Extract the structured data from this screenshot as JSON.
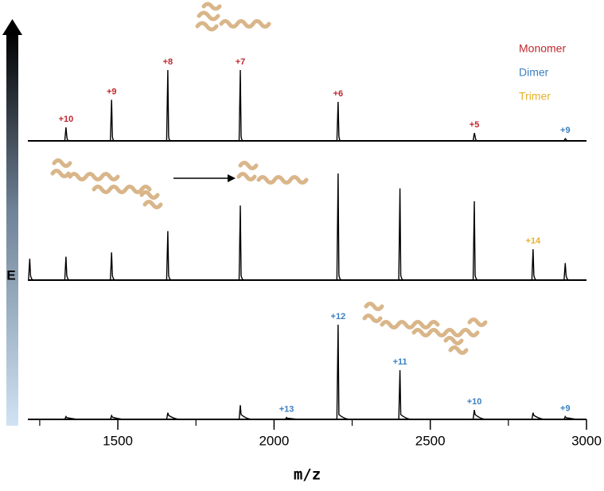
{
  "chart_data": {
    "type": "spectrum",
    "xlabel": "m/z",
    "ylabel": "E",
    "xlim": [
      1212,
      3000
    ],
    "xticks": [
      1500,
      2000,
      2500,
      3000
    ],
    "xminor_ticks": [
      1250,
      1750,
      2250,
      2750
    ],
    "legend": [
      {
        "name": "Monomer",
        "color": "#c0272d"
      },
      {
        "name": "Dimer",
        "color": "#3b7fc0"
      },
      {
        "name": "Trimer",
        "color": "#e6b22e"
      }
    ],
    "panels": [
      {
        "x": [
          1334,
          1480,
          1660,
          1892,
          2205,
          2641,
          2932
        ],
        "values": [
          19,
          58,
          100,
          100,
          55,
          11,
          3
        ],
        "labels": [
          "+10",
          "+9",
          "+8",
          "+7",
          "+6",
          "+5",
          "+9"
        ],
        "label_colors": [
          "#c0272d",
          "#c0272d",
          "#c0272d",
          "#c0272d",
          "#c0272d",
          "#c0272d",
          "#3b7fc0"
        ]
      },
      {
        "x": [
          1218,
          1334,
          1480,
          1660,
          1892,
          2205,
          2403,
          2641,
          2829,
          2932
        ],
        "values": [
          20,
          22,
          26,
          46,
          70,
          100,
          86,
          74,
          29,
          16
        ],
        "labels": [
          null,
          null,
          null,
          null,
          null,
          null,
          null,
          null,
          "+14",
          null
        ],
        "label_colors": [
          null,
          null,
          null,
          null,
          null,
          null,
          null,
          null,
          "#e6b22e",
          null
        ]
      },
      {
        "x": [
          1334,
          1480,
          1660,
          1892,
          2040,
          2205,
          2403,
          2641,
          2829,
          2932
        ],
        "values": [
          3,
          4,
          7,
          15,
          2,
          100,
          52,
          10,
          7,
          3
        ],
        "labels": [
          null,
          null,
          null,
          null,
          "+13",
          "+12",
          "+11",
          "+10",
          null,
          "+9"
        ],
        "label_colors": [
          null,
          null,
          null,
          null,
          "#3b7fc0",
          "#3b7fc0",
          "#3b7fc0",
          "#3b7fc0",
          null,
          "#3b7fc0"
        ]
      }
    ]
  }
}
